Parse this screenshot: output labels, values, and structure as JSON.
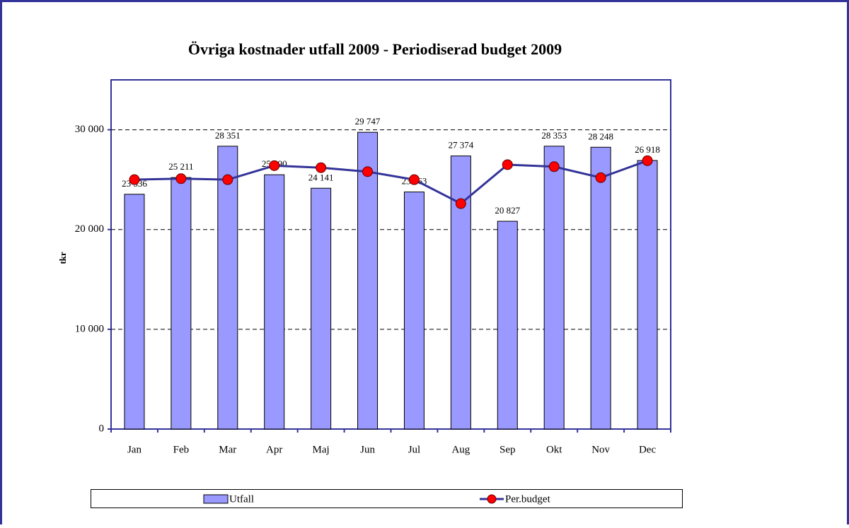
{
  "chart_data": {
    "type": "bar",
    "title": "Övriga kostnader utfall 2009 - Periodiserad budget 2009",
    "y_label": "tkr",
    "categories": [
      "Jan",
      "Feb",
      "Mar",
      "Apr",
      "Maj",
      "Jun",
      "Jul",
      "Aug",
      "Sep",
      "Okt",
      "Nov",
      "Dec"
    ],
    "series": [
      {
        "name": "Utfall",
        "type": "bar",
        "color": "#9999ff",
        "values": [
          23536,
          25211,
          28351,
          25490,
          24141,
          29747,
          23763,
          27374,
          20827,
          28353,
          28248,
          26918
        ],
        "value_labels": [
          "23 536",
          "25 211",
          "28 351",
          "25 490",
          "24 141",
          "29 747",
          "23 763",
          "27 374",
          "20 827",
          "28 353",
          "28 248",
          "26 918"
        ]
      },
      {
        "name": "Per.budget",
        "type": "line",
        "color": "#333399",
        "marker_color": "#ff0000",
        "values": [
          25000,
          25100,
          25000,
          26400,
          26200,
          25800,
          25000,
          22600,
          26500,
          26300,
          25200,
          26900
        ]
      }
    ],
    "ylim": [
      0,
      35000
    ],
    "yticks": [
      0,
      {
        "value": 10000,
        "label": "10 000"
      },
      {
        "value": 20000,
        "label": "20 000"
      },
      {
        "value": 30000,
        "label": "30 000"
      }
    ],
    "grid": true,
    "legend": "bottom"
  }
}
